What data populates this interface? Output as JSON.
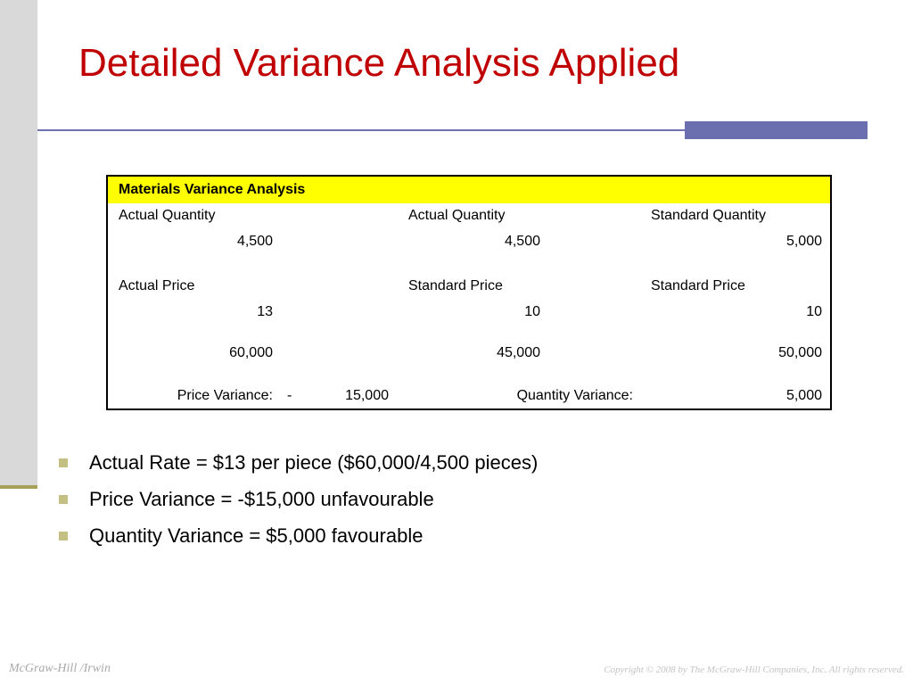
{
  "slide": {
    "title": "Detailed Variance Analysis Applied"
  },
  "table": {
    "header": "Materials Variance Analysis",
    "col1": {
      "qty_label": "Actual Quantity",
      "qty_value": "4,500",
      "price_label": "Actual Price",
      "price_value": "13",
      "total": "60,000"
    },
    "col2": {
      "qty_label": "Actual Quantity",
      "qty_value": "4,500",
      "price_label": "Standard Price",
      "price_value": "10",
      "total": "45,000"
    },
    "col3": {
      "qty_label": "Standard Quantity",
      "qty_value": "5,000",
      "price_label": "Standard Price",
      "price_value": "10",
      "total": "50,000"
    },
    "variances": {
      "price_label": "Price Variance:",
      "price_sign": "-",
      "price_value": "15,000",
      "quantity_label": "Quantity Variance:",
      "quantity_value": "5,000"
    }
  },
  "bullets": [
    "Actual Rate = $13 per piece ($60,000/4,500 pieces)",
    "Price Variance = -$15,000 unfavourable",
    "Quantity Variance = $5,000 favourable"
  ],
  "footer": {
    "publisher": "McGraw-Hill /Irwin",
    "copyright": "Copyright © 2008 by The McGraw-Hill Companies, Inc. All rights reserved."
  },
  "colors": {
    "title": "#c00000",
    "header_fill": "#ffff00",
    "accent_rule": "#6b6fb0",
    "bullet": "#c4bf83"
  }
}
